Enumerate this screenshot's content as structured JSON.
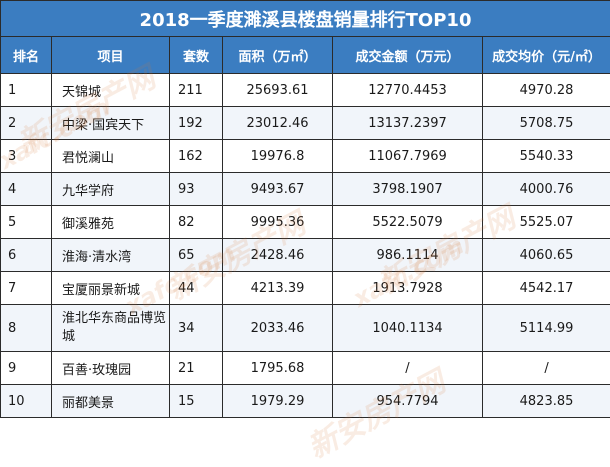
{
  "table": {
    "title": "2018一季度濉溪县楼盘销量排行TOP10",
    "headers": [
      "排名",
      "项目",
      "套数",
      "面积（万㎡）",
      "成交金额（万元）",
      "成交均价（元/㎡）"
    ],
    "rows": [
      {
        "rank": "1",
        "project": "天锦城",
        "units": "211",
        "area": "25693.61",
        "amount": "12770.4453",
        "price": "4970.28"
      },
      {
        "rank": "2",
        "project": "中梁·国宾天下",
        "units": "192",
        "area": "23012.46",
        "amount": "13137.2397",
        "price": "5708.75"
      },
      {
        "rank": "3",
        "project": "君悦澜山",
        "units": "162",
        "area": "19976.8",
        "amount": "11067.7969",
        "price": "5540.33"
      },
      {
        "rank": "4",
        "project": "九华学府",
        "units": "93",
        "area": "9493.67",
        "amount": "3798.1907",
        "price": "4000.76"
      },
      {
        "rank": "5",
        "project": "御溪雅苑",
        "units": "82",
        "area": "9995.36",
        "amount": "5522.5079",
        "price": "5525.07"
      },
      {
        "rank": "6",
        "project": "淮海·清水湾",
        "units": "65",
        "area": "2428.46",
        "amount": "986.1114",
        "price": "4060.65"
      },
      {
        "rank": "7",
        "project": "宝厦丽景新城",
        "units": "44",
        "area": "4213.39",
        "amount": "1913.7928",
        "price": "4542.17"
      },
      {
        "rank": "8",
        "project": "淮北华东商品博览城",
        "units": "34",
        "area": "2033.46",
        "amount": "1040.1134",
        "price": "5114.99"
      },
      {
        "rank": "9",
        "project": "百善·玫瑰园",
        "units": "21",
        "area": "1795.68",
        "amount": "/",
        "price": "/"
      },
      {
        "rank": "10",
        "project": "丽都美景",
        "units": "15",
        "area": "1979.29",
        "amount": "954.7794",
        "price": "4823.85"
      }
    ]
  },
  "watermark": {
    "text": "新安房产网",
    "domain": "xafc.com"
  },
  "colors": {
    "header_bg": "#3b7dc1",
    "header_text": "#ffffff",
    "watermark": "#d6783c"
  }
}
